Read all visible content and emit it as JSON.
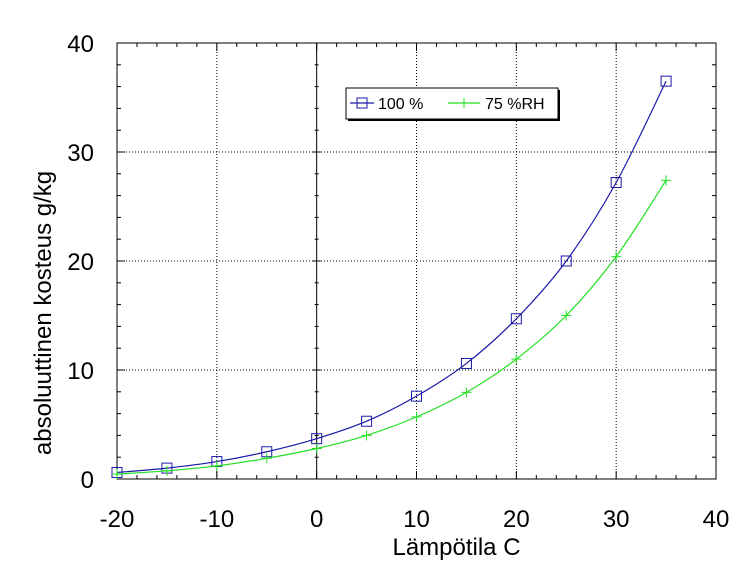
{
  "chart_data": {
    "type": "line",
    "xlabel": "Lämpötila C",
    "ylabel": "absoluuttinen kosteus g/kg",
    "xlim": [
      -20,
      40
    ],
    "ylim": [
      0,
      40
    ],
    "x_ticks": [
      -20,
      -10,
      0,
      10,
      20,
      30,
      40
    ],
    "y_ticks": [
      0,
      10,
      20,
      30,
      40
    ],
    "grid": true,
    "legend_position": "top-center",
    "x": [
      -20,
      -15,
      -10,
      -5,
      0,
      5,
      10,
      15,
      20,
      25,
      30,
      35
    ],
    "series": [
      {
        "name": "100 %",
        "color": "#1a1aa8",
        "marker": "square",
        "values": [
          0.6,
          1.0,
          1.6,
          2.5,
          3.7,
          5.3,
          7.6,
          10.6,
          14.7,
          20.0,
          27.2,
          36.5
        ]
      },
      {
        "name": "75 %RH",
        "color": "#22e022",
        "marker": "plus",
        "values": [
          0.45,
          0.75,
          1.2,
          1.9,
          2.8,
          4.0,
          5.7,
          7.95,
          11.0,
          15.0,
          20.4,
          27.4
        ]
      }
    ]
  }
}
